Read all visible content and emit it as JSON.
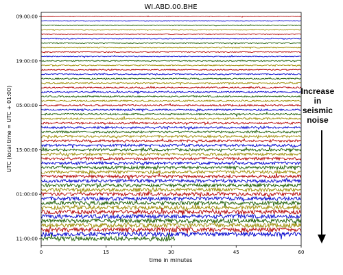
{
  "chart_data": {
    "type": "line",
    "title": "WI.ABD.00.BHE",
    "xlabel": "time in minutes",
    "ylabel": "UTC (local time = UTC + 01:00)",
    "xlim": [
      0,
      60
    ],
    "xticks": [
      "0",
      "15",
      "30",
      "45",
      "60"
    ],
    "yticks": [
      "09:00:00",
      "19:00:00",
      "05:00:00",
      "15:00:00",
      "01:00:00",
      "11:00:00"
    ],
    "row_count": 51,
    "last_row_end_minutes": 31,
    "trace_colors": [
      "#b30000",
      "#0000cc",
      "#1a5c00",
      "#9a8a00"
    ],
    "amplitude_trend": "increasing from top to bottom",
    "grid": false,
    "annotation": [
      "Increase",
      "in",
      "seismic",
      "noise"
    ]
  },
  "annotation_color": "#000000"
}
